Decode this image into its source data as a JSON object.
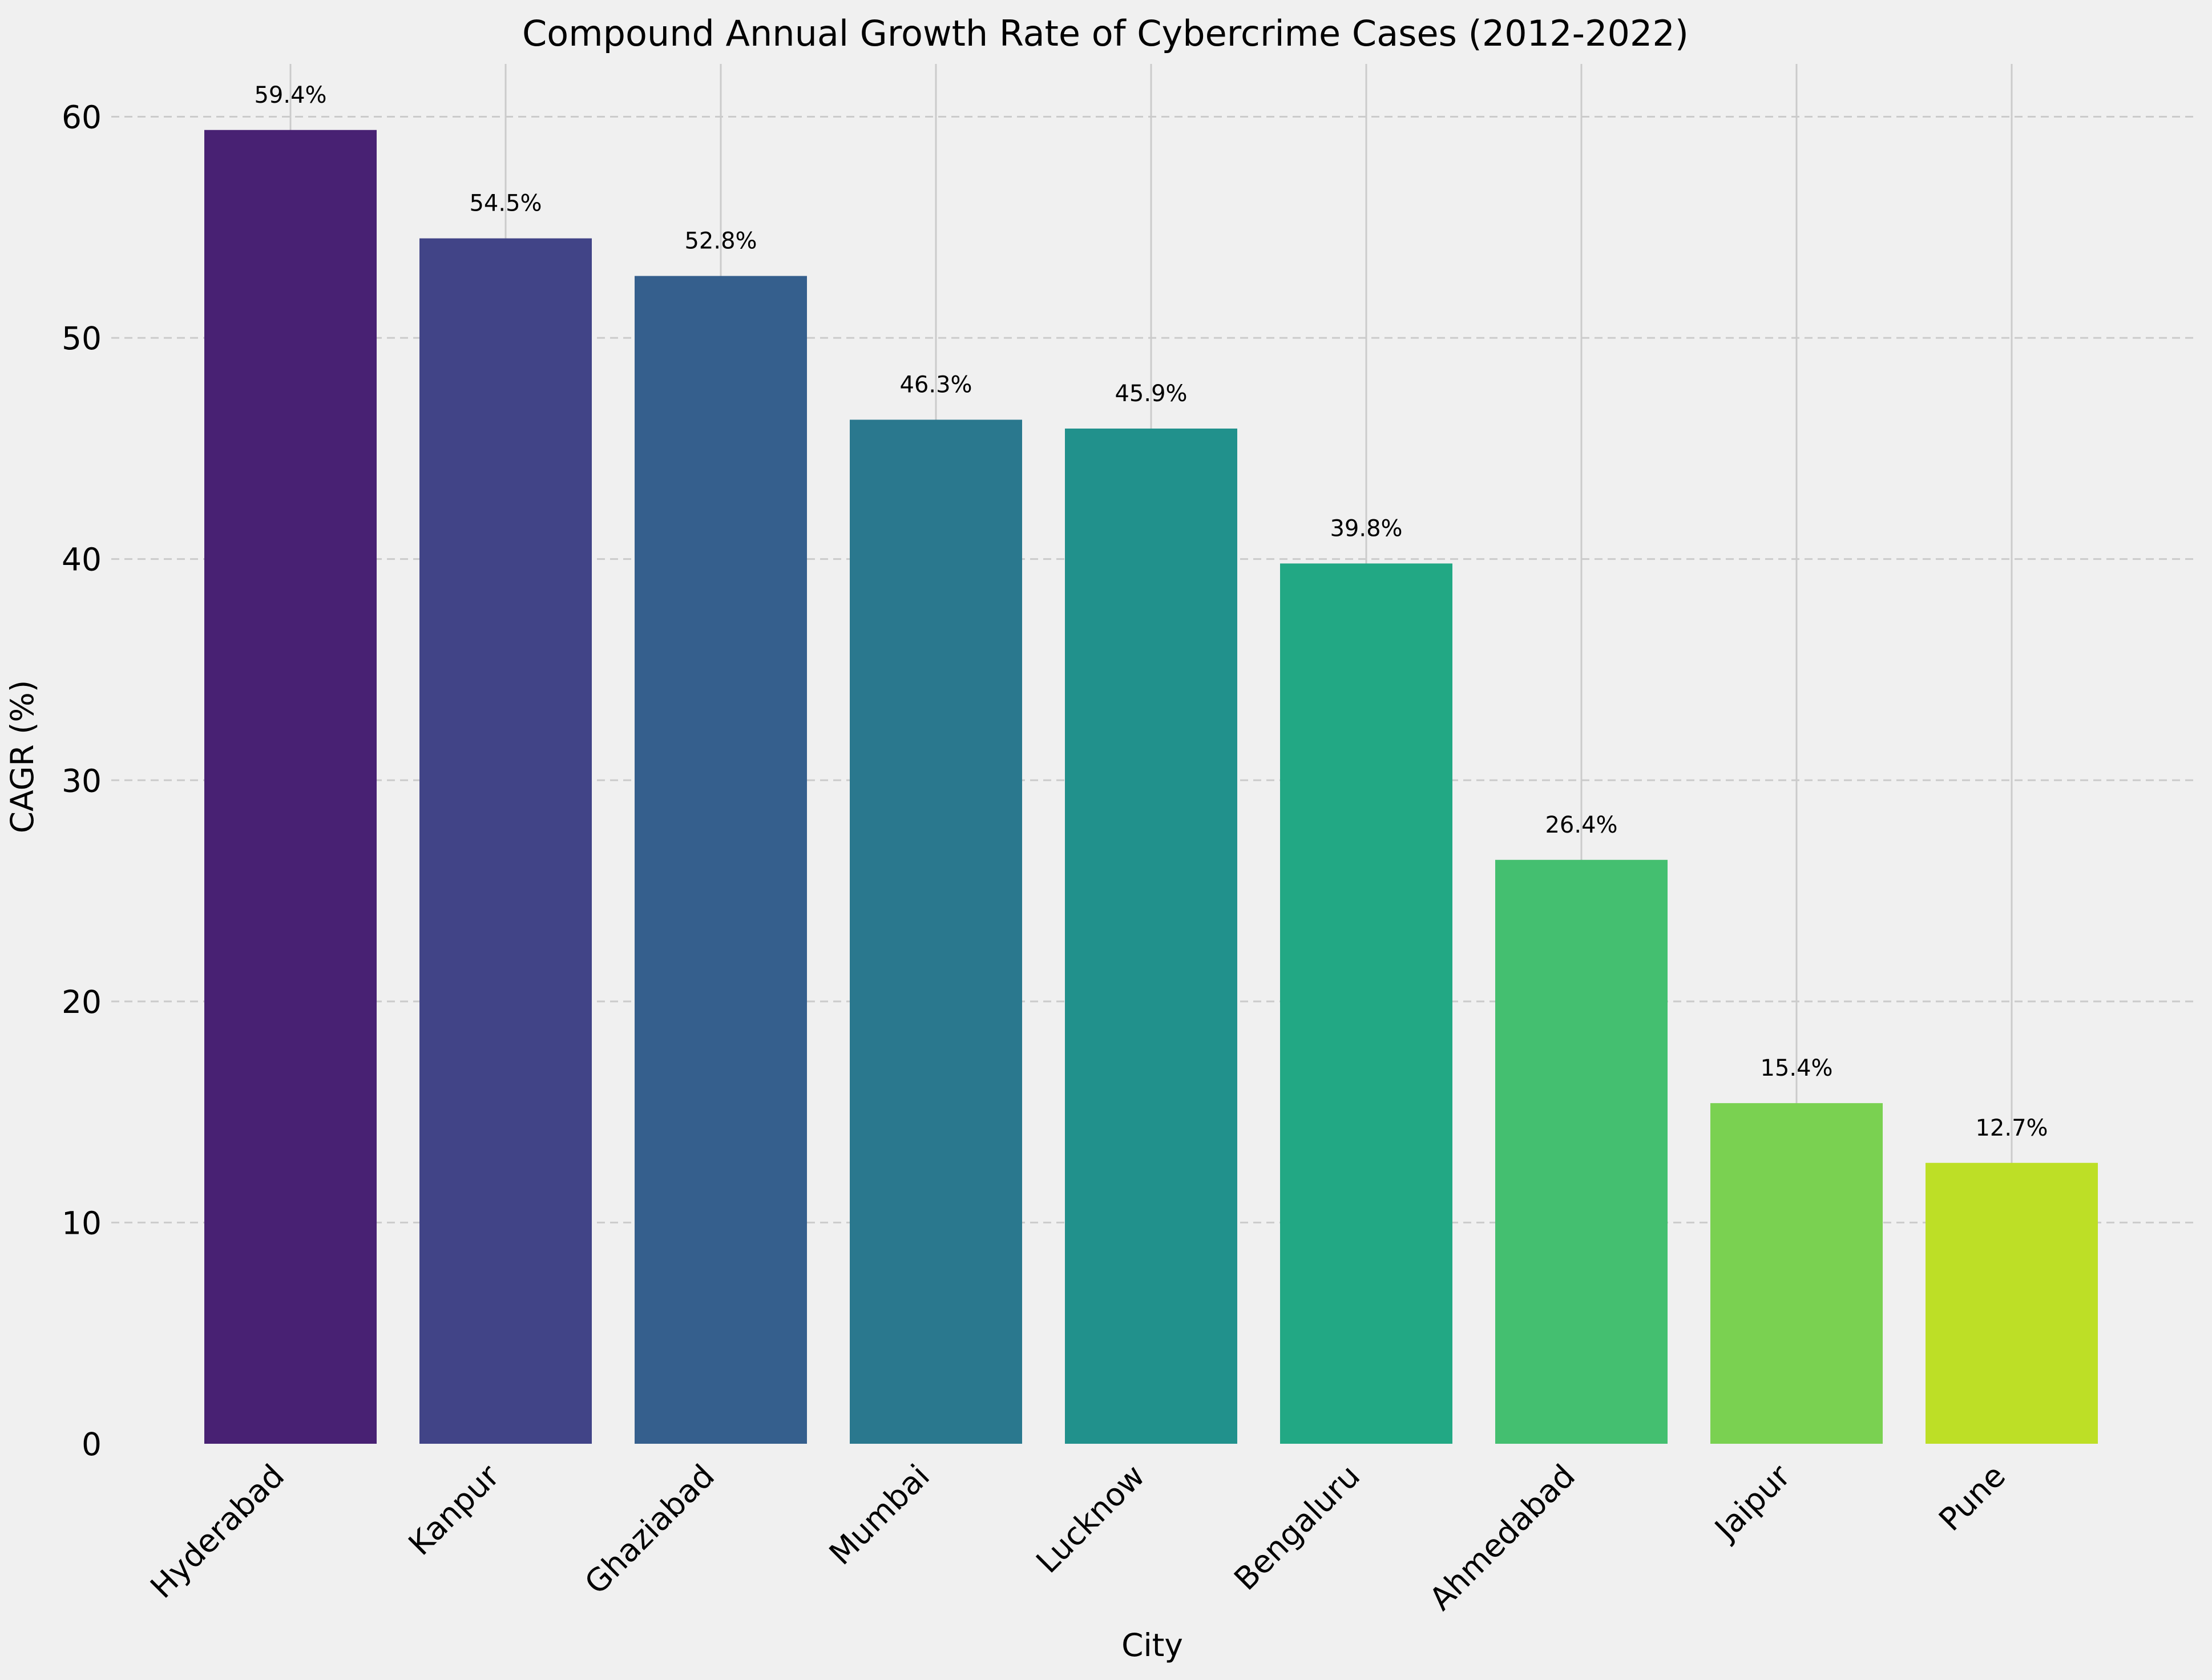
{
  "chart_data": {
    "type": "bar",
    "title": "Compound Annual Growth Rate of Cybercrime Cases (2012-2022)",
    "xlabel": "City",
    "ylabel": "CAGR (%)",
    "categories": [
      "Hyderabad",
      "Kanpur",
      "Ghaziabad",
      "Mumbai",
      "Lucknow",
      "Bengaluru",
      "Ahmedabad",
      "Jaipur",
      "Pune"
    ],
    "values": [
      59.4,
      54.5,
      52.8,
      46.3,
      45.9,
      39.8,
      26.4,
      15.4,
      12.7
    ],
    "data_labels": [
      "59.4%",
      "54.5%",
      "52.8%",
      "46.3%",
      "45.9%",
      "39.8%",
      "26.4%",
      "15.4%",
      "12.7%"
    ],
    "colors": [
      "#482173",
      "#414487",
      "#355f8d",
      "#2a788e",
      "#21918c",
      "#22a884",
      "#44bf70",
      "#7ad151",
      "#bddf26"
    ],
    "ylim": [
      0,
      62
    ],
    "yticks": [
      0,
      10,
      20,
      30,
      40,
      50,
      60
    ],
    "grid": {
      "y": "dashed",
      "x": "solid"
    },
    "background": "#f0f0f0",
    "grid_color": "#cbcbcb"
  }
}
